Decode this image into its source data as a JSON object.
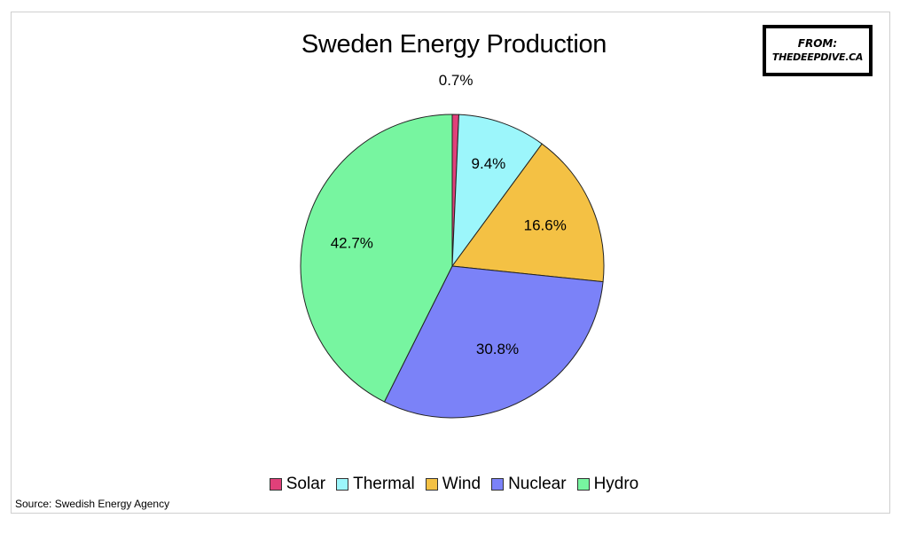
{
  "chart_data": {
    "type": "pie",
    "title": "Sweden Energy Production",
    "categories": [
      "Solar",
      "Thermal",
      "Wind",
      "Nuclear",
      "Hydro"
    ],
    "values": [
      0.7,
      9.4,
      16.6,
      30.8,
      42.7
    ],
    "labels": [
      "0.7%",
      "9.4%",
      "16.6%",
      "30.8%",
      "42.7%"
    ],
    "colors": [
      "#e0407a",
      "#9cf6fb",
      "#f4c144",
      "#7b82f8",
      "#77f5a0"
    ],
    "legend_position": "bottom"
  },
  "stamp": {
    "line1": "FROM:",
    "line2": "THEDEEPDIVE.CA"
  },
  "source": "Source: Swedish Energy Agency"
}
